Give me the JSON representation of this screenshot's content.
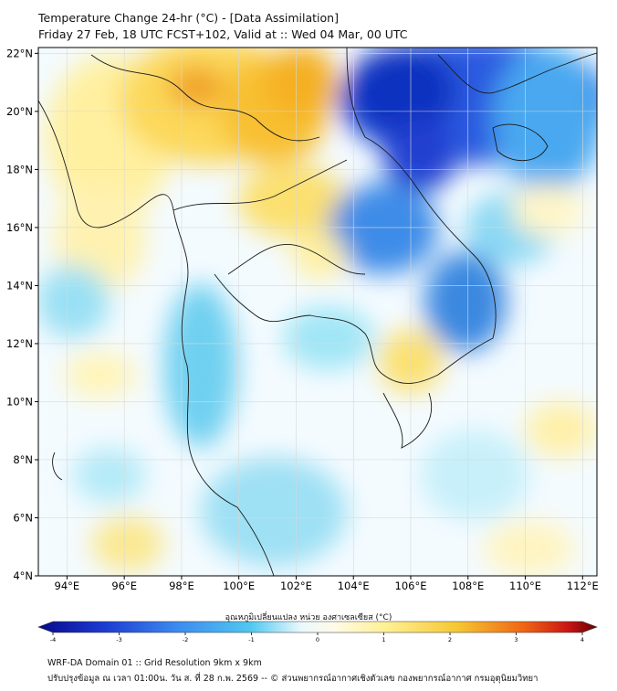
{
  "header": {
    "title": "Temperature Change 24-hr (°C) - [Data Assimilation]",
    "subtitle": "Friday 27 Feb, 18 UTC FCST+102, Valid at :: Wed 04 Mar, 00 UTC"
  },
  "axes": {
    "lat_labels": [
      "22°N",
      "20°N",
      "18°N",
      "16°N",
      "14°N",
      "12°N",
      "10°N",
      "8°N",
      "6°N",
      "4°N"
    ],
    "lon_labels": [
      "94°E",
      "96°E",
      "98°E",
      "100°E",
      "102°E",
      "104°E",
      "106°E",
      "108°E",
      "110°E",
      "112°E"
    ],
    "lat_range": [
      4,
      22.2
    ],
    "lon_range": [
      93,
      112.5
    ]
  },
  "colorbar": {
    "label": "อุณหภูมิเปลี่ยนแปลง หน่วย องศาเซลเซียส (°C)",
    "ticks": [
      "-4",
      "-3",
      "-2",
      "-1",
      "0",
      "1",
      "2",
      "3",
      "4"
    ],
    "range": [
      -4,
      4
    ],
    "colors": [
      "#08088c",
      "#1e3cd2",
      "#3c8cf0",
      "#50c8f0",
      "#ffffff",
      "#fff096",
      "#f5c832",
      "#f08c14",
      "#d21e1e",
      "#640000"
    ]
  },
  "footer": {
    "line1": "WRF-DA Domain 01 :: Grid Resolution 9km x 9km",
    "line2": "ปรับปรุงข้อมูล ณ เวลา 01:00น. วัน ส. ที่ 28 ก.พ. 2569 -- © ส่วนพยากรณ์อากาศเชิงตัวเลข กองพยากรณ์อากาศ กรมอุตุนิยมวิทยา"
  }
}
